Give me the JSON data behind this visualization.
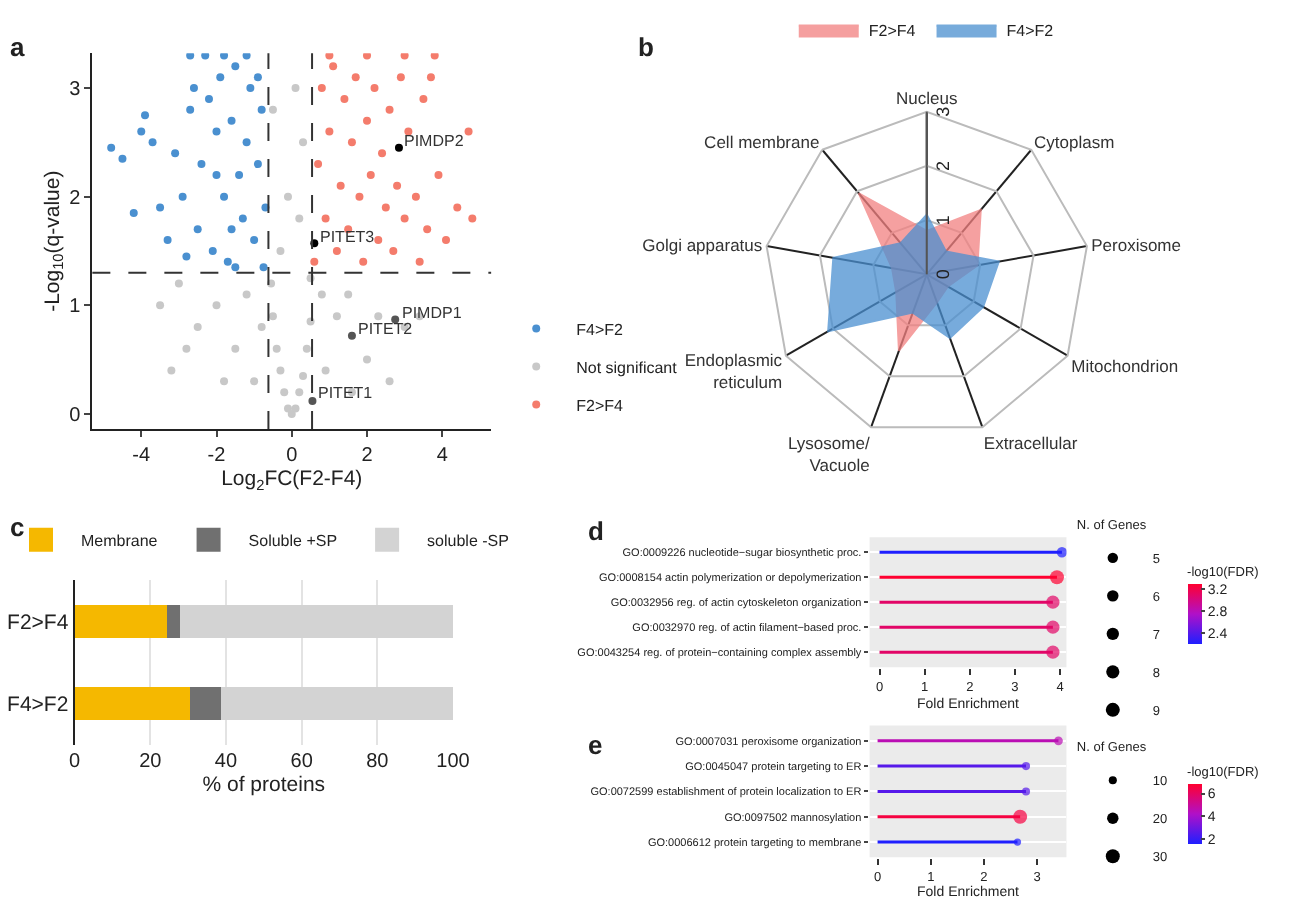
{
  "chart_data": [
    {
      "type": "scatter",
      "title": "a",
      "xlabel": "Log$_{2}$FC(F2-F4)",
      "ylabel": "-Log$_{10}$(q-value)",
      "xlim": [
        -5.3,
        5.3
      ],
      "xticks": [
        -4,
        -2,
        0,
        2,
        4
      ],
      "ylim": [
        -0.14,
        3.32
      ],
      "yticks": [
        0,
        1,
        2,
        3
      ],
      "grid": false,
      "legend": "bottom right",
      "marker": "circle",
      "ref_lines": [
        {
          "axis": "x",
          "value": -0.62,
          "line_style": "dashed"
        },
        {
          "axis": "x",
          "value": 0.54,
          "line_style": "dashed"
        },
        {
          "axis": "y",
          "value": 1.3,
          "line_style": "dashed"
        }
      ],
      "annotations": [
        {
          "text": "PIMDP2",
          "x": 2.85,
          "y": 2.45
        },
        {
          "text": "PITET3",
          "x": 0.6,
          "y": 1.57
        },
        {
          "text": "PIMDP1",
          "x": 2.75,
          "y": 0.87
        },
        {
          "text": "PITET2",
          "x": 1.6,
          "y": 0.72
        },
        {
          "text": "PITET1",
          "x": 0.55,
          "y": 0.12
        }
      ],
      "series": [
        {
          "name": "F4>F2",
          "color": "#4a90d0",
          "x": [
            -4.8,
            -4.5,
            -4.2,
            -4.0,
            -3.9,
            -3.7,
            -3.5,
            -3.3,
            -3.1,
            -2.9,
            -2.8,
            -2.7,
            -2.6,
            -2.5,
            -2.4,
            -2.2,
            -2.1,
            -2.0,
            -1.9,
            -1.8,
            -1.7,
            -1.6,
            -1.5,
            -1.4,
            -1.3,
            -1.2,
            -1.1,
            -1.0,
            -0.9,
            -0.8,
            -0.7,
            -0.75,
            -2.3,
            -1.8,
            -1.2,
            -2.7,
            -1.5,
            -2.0,
            -0.9,
            -1.6
          ],
          "values": [
            2.45,
            2.35,
            1.85,
            2.6,
            2.75,
            2.5,
            1.9,
            1.6,
            2.4,
            2.0,
            1.45,
            2.8,
            3.0,
            1.7,
            2.3,
            2.9,
            1.5,
            2.6,
            3.1,
            2.0,
            1.4,
            2.7,
            3.2,
            2.2,
            1.8,
            2.5,
            3.0,
            1.6,
            2.3,
            2.8,
            1.9,
            1.35,
            3.3,
            3.3,
            3.3,
            3.3,
            1.35,
            2.2,
            3.1,
            1.7
          ]
        },
        {
          "name": "Not significant",
          "color": "#c8c8c8",
          "x": [
            0,
            -0.1,
            0.1,
            -0.2,
            0.2,
            -0.3,
            0.3,
            -0.4,
            0.4,
            -0.5,
            0.5,
            -0.55,
            0.5,
            -0.3,
            -0.1,
            0.2,
            0.3,
            -0.5,
            0.1,
            -0.8,
            -1.2,
            -1.5,
            -2.0,
            -2.5,
            -3.0,
            -3.5,
            -3.2,
            -1.0,
            0.9,
            1.2,
            1.5,
            2.0,
            2.3,
            2.6,
            3.0,
            3.4,
            1.6,
            -2.8,
            -1.8,
            0.8
          ],
          "values": [
            0.0,
            0.05,
            0.05,
            0.2,
            0.2,
            0.4,
            0.35,
            0.6,
            0.6,
            0.9,
            0.85,
            1.2,
            1.25,
            1.5,
            2.0,
            1.8,
            2.5,
            2.8,
            3.0,
            0.8,
            1.1,
            0.6,
            1.0,
            0.8,
            1.2,
            1.0,
            0.4,
            0.3,
            0.4,
            0.9,
            1.1,
            0.5,
            0.9,
            0.3,
            0.8,
            0.9,
            0.2,
            0.6,
            0.3,
            1.1
          ]
        },
        {
          "name": "F2>F4",
          "color": "#f47c6c",
          "x": [
            0.6,
            0.7,
            0.8,
            0.9,
            1.0,
            1.1,
            1.2,
            1.3,
            1.4,
            1.5,
            1.6,
            1.7,
            1.8,
            1.9,
            2.0,
            2.1,
            2.2,
            2.3,
            2.4,
            2.5,
            2.6,
            2.7,
            2.8,
            2.9,
            3.0,
            3.1,
            3.3,
            3.4,
            3.5,
            3.6,
            3.7,
            3.9,
            4.1,
            4.4,
            4.7,
            4.8,
            1.0,
            2.0,
            3.0,
            3.8
          ],
          "values": [
            1.4,
            2.3,
            3.0,
            1.8,
            2.6,
            3.2,
            1.5,
            2.1,
            2.9,
            1.7,
            2.5,
            3.1,
            2.0,
            1.4,
            2.7,
            2.2,
            3.0,
            1.6,
            2.4,
            1.9,
            2.8,
            1.5,
            2.1,
            3.1,
            1.8,
            2.6,
            2.0,
            1.4,
            2.9,
            1.7,
            3.1,
            2.2,
            1.6,
            1.9,
            2.6,
            1.8,
            3.3,
            3.3,
            3.3,
            3.3
          ]
        },
        {
          "colors": [
            "#000000",
            "#000000",
            "#555555",
            "#555555",
            "#555555"
          ],
          "x": [
            2.85,
            0.6,
            2.75,
            1.6,
            0.55
          ],
          "values": [
            2.45,
            1.57,
            0.87,
            0.72,
            0.12
          ]
        }
      ]
    },
    {
      "type": "radar",
      "title": "b",
      "categories": [
        "Nucleus",
        "Cytoplasm",
        "Peroxisome",
        "Mitochondrion",
        "Extracellular",
        "Lysosome/\nVacuole",
        "Endoplasmic\nreticulum",
        "Golgi apparatus",
        "Cell membrane"
      ],
      "ylim": [
        0,
        3
      ],
      "yticks": [
        0,
        1,
        2,
        3
      ],
      "grid": true,
      "legend": "top",
      "series": [
        {
          "name": "F2>F4",
          "color": "#f28080",
          "values": [
            0.8,
            1.55,
            0.95,
            0.45,
            0.55,
            1.5,
            0.65,
            0.65,
            1.95
          ]
        },
        {
          "name": "F4>F2",
          "color": "#4a8fd0",
          "values": [
            1.1,
            0.55,
            1.35,
            1.2,
            1.25,
            0.75,
            2.1,
            1.75,
            0.75
          ]
        }
      ]
    },
    {
      "type": "bar",
      "title": "c",
      "orientation": "horizontal",
      "stacked": true,
      "categories": [
        "F2>F4",
        "F4>F2"
      ],
      "xlabel": "% of proteins",
      "xlim": [
        0,
        100
      ],
      "xticks": [
        0,
        20,
        40,
        60,
        80,
        100
      ],
      "grid": "x",
      "legend": "top",
      "series": [
        {
          "name": "Membrane",
          "color": "#f5b800",
          "values": [
            24.5,
            30.5
          ]
        },
        {
          "name": "Soluble +SP",
          "color": "#707070",
          "values": [
            3.3,
            8.3
          ]
        },
        {
          "name": "soluble -SP",
          "color": "#d3d3d3",
          "values": [
            72.2,
            61.2
          ]
        }
      ]
    },
    {
      "type": "lollipop",
      "title": "d",
      "orientation": "horizontal",
      "categories": [
        "GO:0009226 nucleotide−sugar biosynthetic proc.",
        "GO:0008154 actin polymerization or depolymerization",
        "GO:0032956 reg. of actin cytoskeleton organization",
        "GO:0032970 reg. of actin filament−based proc.",
        "GO:0043254 reg. of protein−containing complex assembly"
      ],
      "values": [
        4.04,
        3.93,
        3.84,
        3.84,
        3.84
      ],
      "sizes": [
        5,
        9,
        8,
        8,
        8
      ],
      "size_legend": [
        5,
        6,
        7,
        8,
        9
      ],
      "cvalues": [
        2.2,
        3.3,
        3.1,
        3.1,
        3.1
      ],
      "clim": [
        2.2,
        3.3
      ],
      "cticks": [
        2.4,
        2.8,
        3.2
      ],
      "legend_title": "N. of Genes",
      "clabel": "-log10(FDR)",
      "xlabel": "Fold Enrichment",
      "xlim": [
        -0.22,
        4.14
      ],
      "xticks": [
        0,
        1,
        2,
        3,
        4
      ],
      "grid": "y"
    },
    {
      "type": "lollipop",
      "title": "e",
      "orientation": "horizontal",
      "categories": [
        "GO:0007031 peroxisome organization",
        "GO:0045047 protein targeting to ER",
        "GO:0072599 establishment of protein localization to ER",
        "GO:0097502 mannosylation",
        "GO:0006612 protein targeting to membrane"
      ],
      "values": [
        3.4,
        2.79,
        2.79,
        2.68,
        2.63
      ],
      "sizes": [
        12,
        10,
        10,
        30,
        8
      ],
      "size_legend": [
        10,
        20,
        30
      ],
      "cvalues": [
        4.5,
        2.5,
        2.5,
        6.5,
        1.5
      ],
      "clim": [
        1.5,
        6.8
      ],
      "cticks": [
        2,
        4,
        6
      ],
      "legend_title": "N. of Genes",
      "clabel": "-log10(FDR)",
      "xlabel": "Fold Enrichment",
      "xlim": [
        -0.15,
        3.55
      ],
      "xticks": [
        0,
        1,
        2,
        3
      ],
      "grid": "y"
    }
  ]
}
